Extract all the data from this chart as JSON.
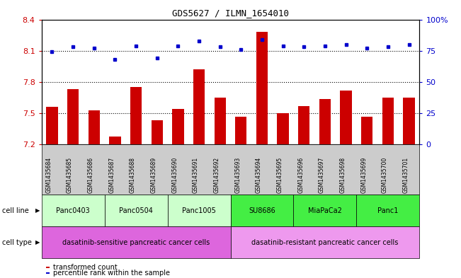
{
  "title": "GDS5627 / ILMN_1654010",
  "samples": [
    "GSM1435684",
    "GSM1435685",
    "GSM1435686",
    "GSM1435687",
    "GSM1435688",
    "GSM1435689",
    "GSM1435690",
    "GSM1435691",
    "GSM1435692",
    "GSM1435693",
    "GSM1435694",
    "GSM1435695",
    "GSM1435696",
    "GSM1435697",
    "GSM1435698",
    "GSM1435699",
    "GSM1435700",
    "GSM1435701"
  ],
  "bar_values": [
    7.56,
    7.73,
    7.53,
    7.28,
    7.75,
    7.43,
    7.54,
    7.92,
    7.65,
    7.47,
    8.28,
    7.5,
    7.57,
    7.64,
    7.72,
    7.47,
    7.65,
    7.65
  ],
  "dot_values": [
    74,
    78,
    77,
    68,
    79,
    69,
    79,
    83,
    78,
    76,
    84,
    79,
    78,
    79,
    80,
    77,
    78,
    80
  ],
  "bar_color": "#cc0000",
  "dot_color": "#0000cc",
  "ylim_left": [
    7.2,
    8.4
  ],
  "ylim_right": [
    0,
    100
  ],
  "yticks_left": [
    7.2,
    7.5,
    7.8,
    8.1,
    8.4
  ],
  "ytick_labels_left": [
    "7.2",
    "7.5",
    "7.8",
    "8.1",
    "8.4"
  ],
  "yticks_right": [
    0,
    25,
    50,
    75,
    100
  ],
  "ytick_labels_right": [
    "0",
    "25",
    "50",
    "75",
    "100%"
  ],
  "hlines": [
    7.5,
    7.8,
    8.1
  ],
  "cell_line_groups": [
    {
      "label": "Panc0403",
      "start": 0,
      "end": 2,
      "color": "#ccffcc"
    },
    {
      "label": "Panc0504",
      "start": 3,
      "end": 5,
      "color": "#ccffcc"
    },
    {
      "label": "Panc1005",
      "start": 6,
      "end": 8,
      "color": "#ccffcc"
    },
    {
      "label": "SU8686",
      "start": 9,
      "end": 11,
      "color": "#44ee44"
    },
    {
      "label": "MiaPaCa2",
      "start": 12,
      "end": 14,
      "color": "#44ee44"
    },
    {
      "label": "Panc1",
      "start": 15,
      "end": 17,
      "color": "#44ee44"
    }
  ],
  "cell_type_groups": [
    {
      "label": "dasatinib-sensitive pancreatic cancer cells",
      "start": 0,
      "end": 8,
      "color": "#dd66dd"
    },
    {
      "label": "dasatinib-resistant pancreatic cancer cells",
      "start": 9,
      "end": 17,
      "color": "#ee99ee"
    }
  ],
  "cell_line_row_label": "cell line",
  "cell_type_row_label": "cell type",
  "legend_items": [
    {
      "color": "#cc0000",
      "label": "transformed count"
    },
    {
      "color": "#0000cc",
      "label": "percentile rank within the sample"
    }
  ],
  "bar_width": 0.55,
  "background_color": "#ffffff",
  "sample_bg_color": "#cccccc"
}
